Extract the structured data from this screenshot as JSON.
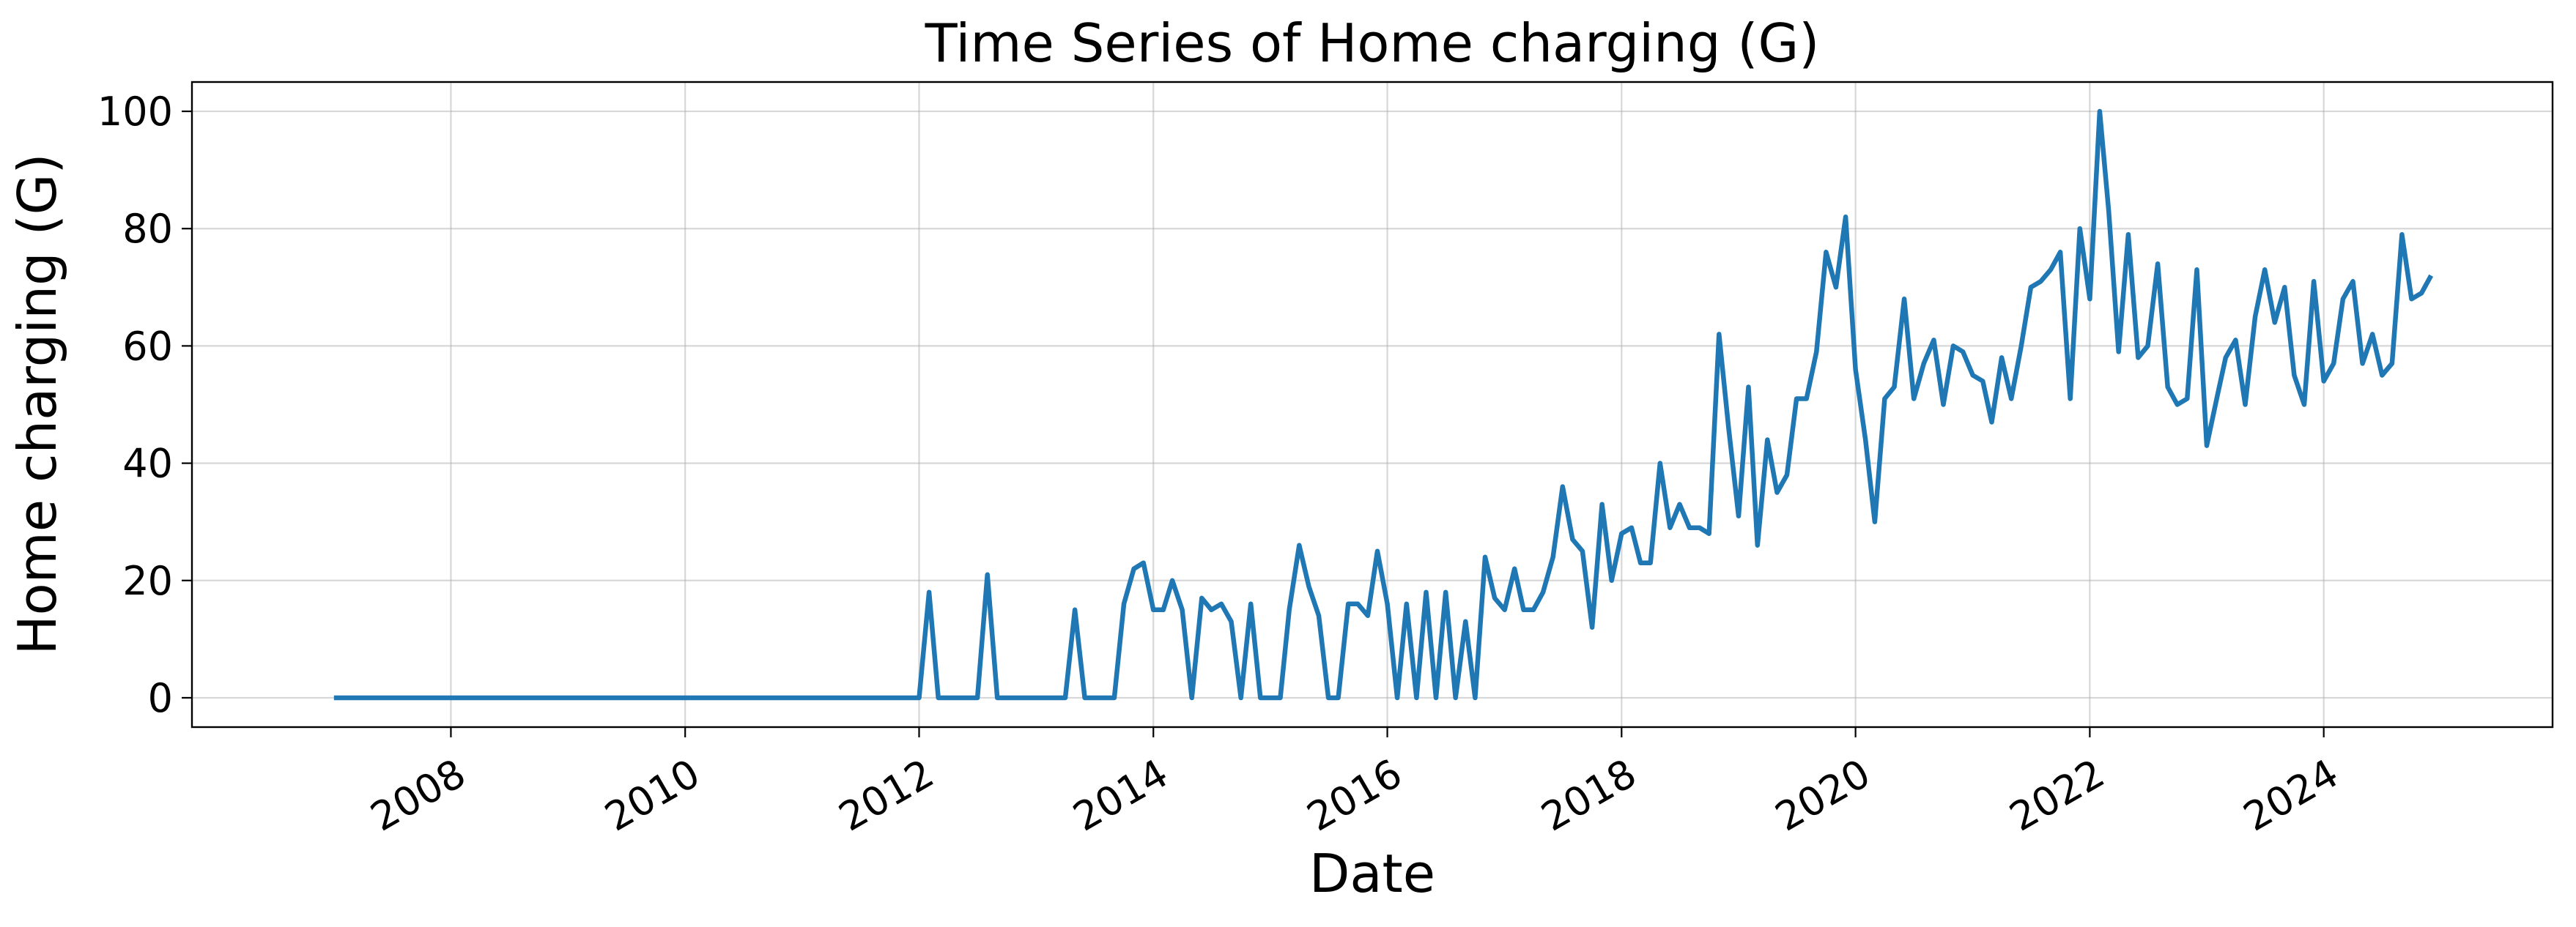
{
  "chart_data": {
    "type": "line",
    "title": "Time Series of Home charging (G)",
    "xlabel": "Date",
    "ylabel": "Home charging (G)",
    "xlim": [
      "2005-10-15",
      "2025-12-15"
    ],
    "ylim": [
      -5,
      105
    ],
    "grid": true,
    "x_ticks": [
      "2008",
      "2010",
      "2012",
      "2014",
      "2016",
      "2018",
      "2020",
      "2022",
      "2024"
    ],
    "y_ticks": [
      "0",
      "20",
      "40",
      "60",
      "80",
      "100"
    ],
    "line_color": "#1f77b4",
    "series": [
      {
        "x": [
          "2007-01",
          "2011-12",
          "2012-01",
          "2012-02",
          "2012-03",
          "2012-04",
          "2012-05",
          "2012-06",
          "2012-07",
          "2012-08",
          "2012-09",
          "2012-10",
          "2012-11",
          "2012-12",
          "2013-01",
          "2013-02",
          "2013-03",
          "2013-04",
          "2013-05",
          "2013-06",
          "2013-07",
          "2013-08",
          "2013-09",
          "2013-10",
          "2013-11",
          "2013-12",
          "2014-01",
          "2014-02",
          "2014-03",
          "2014-04",
          "2014-05",
          "2014-06",
          "2014-07",
          "2014-08",
          "2014-09",
          "2014-10",
          "2014-11",
          "2014-12",
          "2015-01",
          "2015-02",
          "2015-03",
          "2015-04",
          "2015-05",
          "2015-06",
          "2015-07",
          "2015-08",
          "2015-09",
          "2015-10",
          "2015-11",
          "2015-12",
          "2016-01",
          "2016-02",
          "2016-03",
          "2016-04",
          "2016-05",
          "2016-06",
          "2016-07",
          "2016-08",
          "2016-09",
          "2016-10",
          "2016-11",
          "2016-12",
          "2017-01",
          "2017-02",
          "2017-03",
          "2017-04",
          "2017-05",
          "2017-06",
          "2017-07",
          "2017-08",
          "2017-09",
          "2017-10",
          "2017-11",
          "2017-12",
          "2018-01",
          "2018-02",
          "2018-03",
          "2018-04",
          "2018-05",
          "2018-06",
          "2018-07",
          "2018-08",
          "2018-09",
          "2018-10",
          "2018-11",
          "2018-12",
          "2019-01",
          "2019-02",
          "2019-03",
          "2019-04",
          "2019-05",
          "2019-06",
          "2019-07",
          "2019-08",
          "2019-09",
          "2019-10",
          "2019-11",
          "2019-12",
          "2020-01",
          "2020-02",
          "2020-03",
          "2020-04",
          "2020-05",
          "2020-06",
          "2020-07",
          "2020-08",
          "2020-09",
          "2020-10",
          "2020-11",
          "2020-12",
          "2021-01",
          "2021-02",
          "2021-03",
          "2021-04",
          "2021-05",
          "2021-06",
          "2021-07",
          "2021-08",
          "2021-09",
          "2021-10",
          "2021-11",
          "2021-12",
          "2022-01",
          "2022-02",
          "2022-03",
          "2022-04",
          "2022-05",
          "2022-06",
          "2022-07",
          "2022-08",
          "2022-09",
          "2022-10",
          "2022-11",
          "2022-12",
          "2023-01",
          "2023-02",
          "2023-03",
          "2023-04",
          "2023-05",
          "2023-06",
          "2023-07",
          "2023-08",
          "2023-09",
          "2023-10",
          "2023-11",
          "2023-12",
          "2024-01",
          "2024-02",
          "2024-03",
          "2024-04",
          "2024-05",
          "2024-06",
          "2024-07",
          "2024-08",
          "2024-09",
          "2024-10",
          "2024-11",
          "2024-12"
        ],
        "y": [
          0,
          0,
          0,
          18,
          0,
          0,
          0,
          0,
          0,
          21,
          0,
          0,
          0,
          0,
          0,
          0,
          0,
          0,
          15,
          0,
          0,
          0,
          0,
          16,
          22,
          23,
          15,
          15,
          20,
          15,
          0,
          17,
          15,
          16,
          13,
          0,
          16,
          0,
          0,
          0,
          15,
          26,
          19,
          14,
          0,
          0,
          16,
          16,
          14,
          25,
          16,
          0,
          16,
          0,
          18,
          0,
          18,
          0,
          13,
          0,
          24,
          17,
          15,
          22,
          15,
          15,
          18,
          24,
          36,
          27,
          25,
          12,
          33,
          20,
          28,
          29,
          23,
          23,
          40,
          29,
          33,
          29,
          29,
          28,
          62,
          46,
          31,
          53,
          26,
          44,
          35,
          38,
          51,
          51,
          59,
          76,
          70,
          82,
          56,
          44,
          30,
          51,
          53,
          68,
          51,
          57,
          61,
          50,
          60,
          59,
          55,
          54,
          47,
          58,
          51,
          60,
          70,
          71,
          73,
          76,
          51,
          80,
          68,
          100,
          83,
          59,
          79,
          58,
          60,
          74,
          53,
          50,
          51,
          73,
          43,
          51,
          58,
          61,
          50,
          65,
          73,
          64,
          70,
          55,
          50,
          71,
          54,
          57,
          68,
          71,
          57,
          62,
          55,
          57,
          79,
          68,
          69,
          72
        ]
      }
    ]
  }
}
